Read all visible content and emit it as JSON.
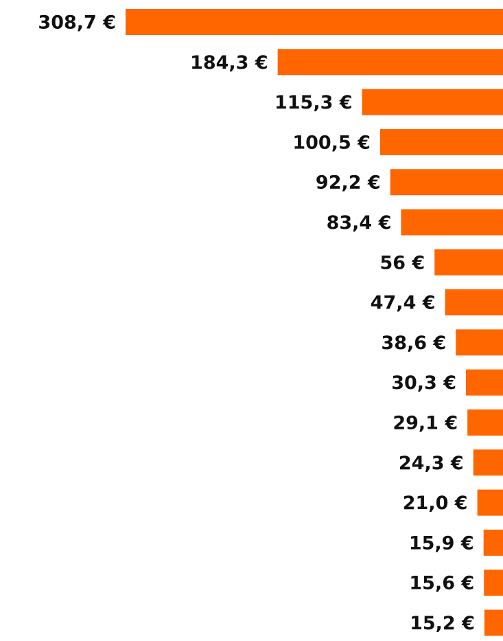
{
  "chart_data": {
    "type": "bar",
    "orientation": "horizontal",
    "color": "#ff6600",
    "values": [
      308.7,
      184.3,
      115.3,
      100.5,
      92.2,
      83.4,
      56,
      47.4,
      38.6,
      30.3,
      29.1,
      24.3,
      21.0,
      15.9,
      15.6,
      15.2
    ],
    "value_labels": [
      "308,7 €",
      "184,3 €",
      "115,3 €",
      "100,5 €",
      "92,2 €",
      "83,4 €",
      "56 €",
      "47,4 €",
      "38,6 €",
      "30,3 €",
      "29,1 €",
      "24,3 €",
      "21,0 €",
      "15,9 €",
      "15,6 €",
      "15,2 €"
    ]
  }
}
